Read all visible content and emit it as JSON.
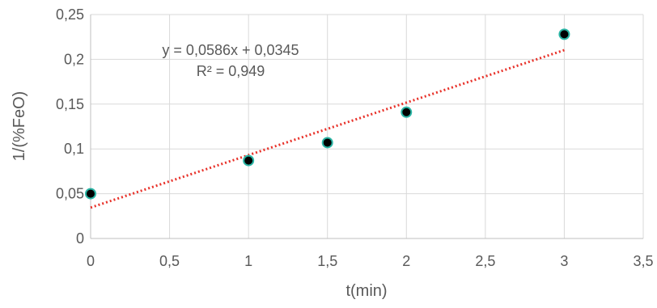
{
  "chart_data": {
    "type": "scatter",
    "xlabel": "t(min)",
    "ylabel": "1/(%FeO)",
    "xlim": [
      0,
      3.5
    ],
    "ylim": [
      0,
      0.25
    ],
    "x_ticks": [
      "0",
      "0,5",
      "1",
      "1,5",
      "2",
      "2,5",
      "3",
      "3,5"
    ],
    "y_ticks": [
      "0",
      "0,05",
      "0,1",
      "0,15",
      "0,2",
      "0,25"
    ],
    "grid": true,
    "series": [
      {
        "x": [
          0,
          1,
          1.5,
          2,
          3
        ],
        "y": [
          0.05,
          0.087,
          0.107,
          0.141,
          0.228
        ],
        "marker_color": "#000000",
        "marker_edge_color": "#2ab5a5"
      }
    ],
    "trendline": {
      "type": "linear",
      "slope": 0.0586,
      "intercept": 0.0345,
      "x_range": [
        0,
        3
      ],
      "color": "#e8322a",
      "style": "dotted",
      "equation": "y = 0,0586x + 0,0345",
      "r_squared": "R² = 0,949"
    }
  }
}
